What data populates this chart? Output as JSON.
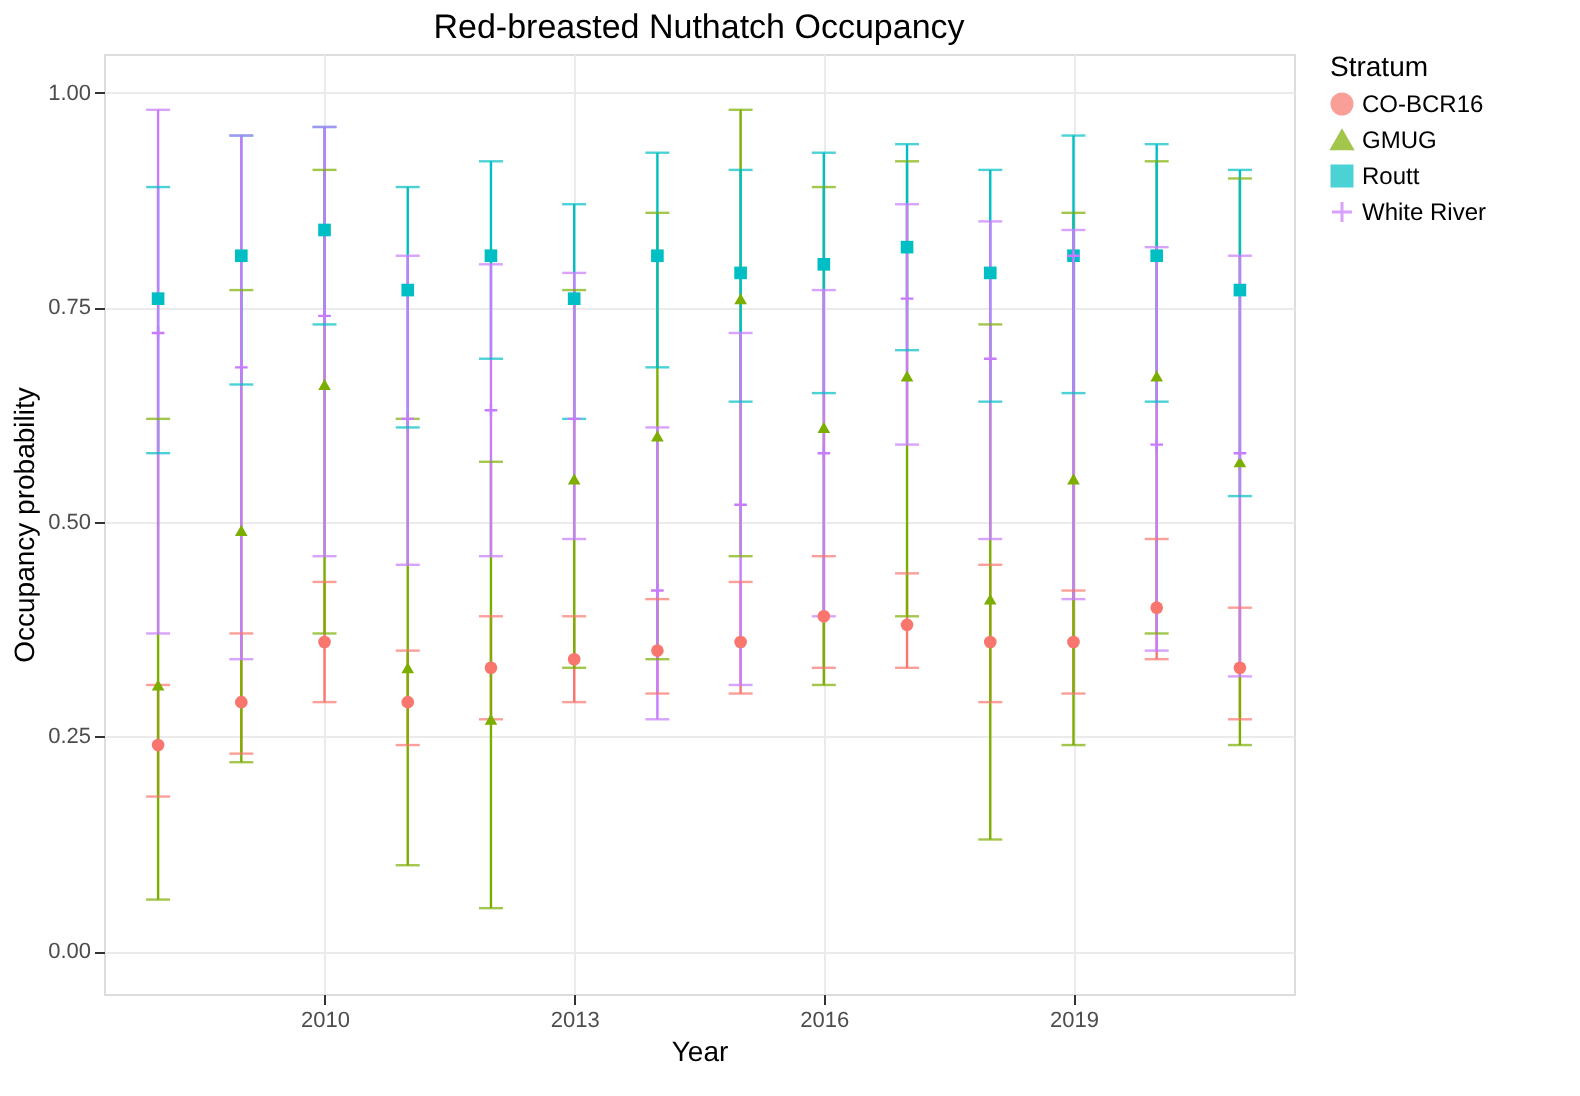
{
  "chart_data": {
    "type": "scatter",
    "title": "Red-breasted Nuthatch Occupancy",
    "xlabel": "Year",
    "ylabel": "Occupancy probability",
    "legend_title": "Stratum",
    "legend": "right",
    "grid": true,
    "x": [
      2008,
      2009,
      2010,
      2011,
      2012,
      2013,
      2014,
      2015,
      2016,
      2017,
      2018,
      2019,
      2020,
      2021
    ],
    "xlim": [
      2007.35,
      2021.65
    ],
    "xticks": [
      2010,
      2013,
      2016,
      2019
    ],
    "ylim": [
      -0.05,
      1.045
    ],
    "yticks": [
      {
        "value": 0,
        "label": "0.00"
      },
      {
        "value": 0.25,
        "label": "0.25"
      },
      {
        "value": 0.5,
        "label": "0.50"
      },
      {
        "value": 0.75,
        "label": "0.75"
      },
      {
        "value": 1,
        "label": "1.00"
      }
    ],
    "series": [
      {
        "name": "CO-BCR16",
        "color": "#f8766d",
        "marker": "circle",
        "values": [
          0.24,
          0.29,
          0.36,
          0.29,
          0.33,
          0.34,
          0.35,
          0.36,
          0.39,
          0.38,
          0.36,
          0.36,
          0.4,
          0.33
        ],
        "errors": [
          [
            0.18,
            0.31
          ],
          [
            0.23,
            0.37
          ],
          [
            0.29,
            0.43
          ],
          [
            0.24,
            0.35
          ],
          [
            0.27,
            0.39
          ],
          [
            0.29,
            0.39
          ],
          [
            0.3,
            0.41
          ],
          [
            0.3,
            0.43
          ],
          [
            0.33,
            0.46
          ],
          [
            0.33,
            0.44
          ],
          [
            0.29,
            0.45
          ],
          [
            0.3,
            0.42
          ],
          [
            0.34,
            0.48
          ],
          [
            0.27,
            0.4
          ]
        ]
      },
      {
        "name": "GMUG",
        "color": "#7cae00",
        "marker": "triangle",
        "values": [
          0.31,
          0.49,
          0.66,
          0.33,
          0.27,
          0.55,
          0.6,
          0.76,
          0.61,
          0.67,
          0.41,
          0.55,
          0.67,
          0.57
        ],
        "errors": [
          [
            0.06,
            0.62
          ],
          [
            0.22,
            0.77
          ],
          [
            0.37,
            0.91
          ],
          [
            0.1,
            0.62
          ],
          [
            0.05,
            0.57
          ],
          [
            0.33,
            0.77
          ],
          [
            0.34,
            0.86
          ],
          [
            0.46,
            0.98
          ],
          [
            0.31,
            0.89
          ],
          [
            0.39,
            0.92
          ],
          [
            0.13,
            0.73
          ],
          [
            0.24,
            0.86
          ],
          [
            0.37,
            0.92
          ],
          [
            0.24,
            0.9
          ]
        ]
      },
      {
        "name": "Routt",
        "color": "#00bfc4",
        "marker": "square",
        "values": [
          0.76,
          0.81,
          0.84,
          0.77,
          0.81,
          0.76,
          0.81,
          0.79,
          0.8,
          0.82,
          0.79,
          0.81,
          0.81,
          0.77
        ],
        "errors": [
          [
            0.58,
            0.89
          ],
          [
            0.66,
            0.95
          ],
          [
            0.73,
            0.96
          ],
          [
            0.61,
            0.89
          ],
          [
            0.69,
            0.92
          ],
          [
            0.62,
            0.87
          ],
          [
            0.68,
            0.93
          ],
          [
            0.64,
            0.91
          ],
          [
            0.65,
            0.93
          ],
          [
            0.7,
            0.94
          ],
          [
            0.64,
            0.91
          ],
          [
            0.65,
            0.95
          ],
          [
            0.64,
            0.94
          ],
          [
            0.53,
            0.91
          ]
        ]
      },
      {
        "name": "White River",
        "color": "#c77cff",
        "marker": "cross",
        "values": [
          0.72,
          0.68,
          0.74,
          0.62,
          0.63,
          0.62,
          0.42,
          0.52,
          0.58,
          0.76,
          0.69,
          0.81,
          0.59,
          0.58
        ],
        "errors": [
          [
            0.37,
            0.98
          ],
          [
            0.34,
            0.95
          ],
          [
            0.46,
            0.96
          ],
          [
            0.45,
            0.81
          ],
          [
            0.46,
            0.8
          ],
          [
            0.48,
            0.79
          ],
          [
            0.27,
            0.61
          ],
          [
            0.31,
            0.72
          ],
          [
            0.39,
            0.77
          ],
          [
            0.59,
            0.87
          ],
          [
            0.48,
            0.85
          ],
          [
            0.41,
            0.84
          ],
          [
            0.35,
            0.82
          ],
          [
            0.32,
            0.81
          ]
        ]
      }
    ]
  }
}
